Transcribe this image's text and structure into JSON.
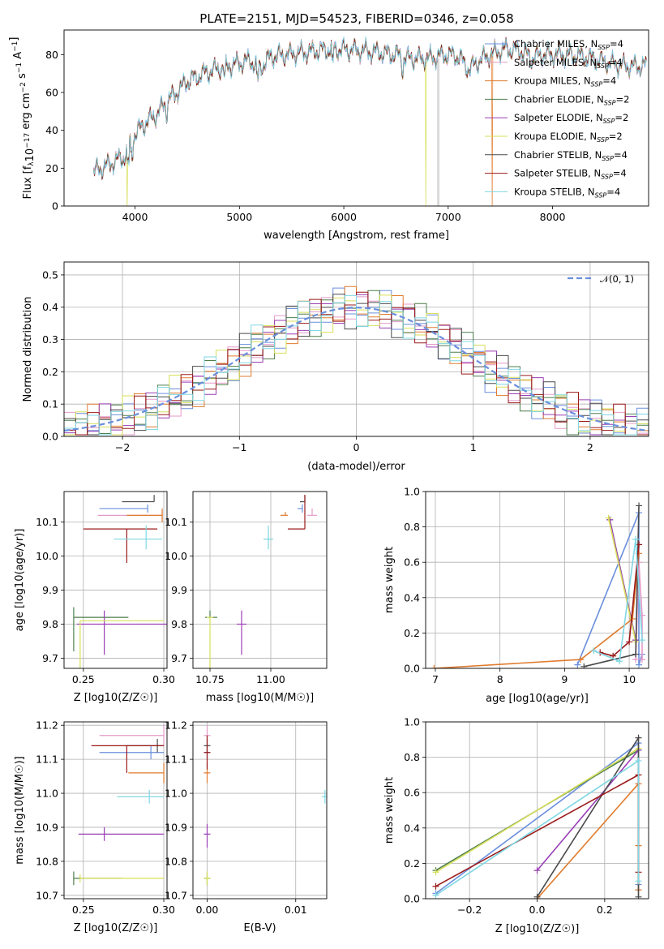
{
  "figure": {
    "title": "PLATE=2151, MJD=54523, FIBERID=0346, z=0.058"
  },
  "colors": {
    "series": [
      "#6a8fdc",
      "#e59ac9",
      "#e07b2d",
      "#4d7f4d",
      "#9a3fb5",
      "#d8df5a",
      "#4a4a4a",
      "#9b1a1a",
      "#7fd7e3"
    ],
    "normal_curve": "#6a8fdc",
    "grid": "#b0b0b0"
  },
  "chart_data": [
    {
      "type": "line",
      "panel": "spectrum",
      "title": "PLATE=2151, MJD=54523, FIBERID=0346, z=0.058",
      "xlabel": "wavelength [Angstrom, rest frame]",
      "ylabel": "Flux [f_λ10^-17 erg cm^-2 s^-1 A^-1]",
      "xlim": [
        3320,
        8920
      ],
      "ylim": [
        0,
        93
      ],
      "xticks": [
        4000,
        5000,
        6000,
        7000,
        8000
      ],
      "yticks": [
        0,
        20,
        40,
        60,
        80
      ],
      "grid": false,
      "legend": "upper right",
      "series": [
        {
          "name": "Chabrier MILES, N_SSP=4"
        },
        {
          "name": "Salpeter MILES, N_SSP=4"
        },
        {
          "name": "Kroupa MILES, N_SSP=4"
        },
        {
          "name": "Chabrier ELODIE, N_SSP=2"
        },
        {
          "name": "Salpeter ELODIE, N_SSP=2"
        },
        {
          "name": "Kroupa ELODIE, N_SSP=2"
        },
        {
          "name": "Chabrier STELIB, N_SSP=4"
        },
        {
          "name": "Salpeter STELIB, N_SSP=4"
        },
        {
          "name": "Kroupa STELIB, N_SSP=4"
        }
      ],
      "continuum": {
        "x": [
          3600,
          3750,
          3900,
          3950,
          4000,
          4100,
          4200,
          4300,
          4400,
          4500,
          4700,
          4900,
          5100,
          5200,
          5300,
          5600,
          5900,
          6200,
          6500,
          6600,
          6800,
          7000,
          7100,
          7200,
          7300,
          7400,
          7550,
          7700,
          7800,
          7900,
          8100,
          8300,
          8500,
          8700,
          8900
        ],
        "y": [
          18,
          22,
          26,
          34,
          38,
          44,
          48,
          55,
          60,
          66,
          71,
          74,
          77,
          73,
          79,
          81,
          83,
          82,
          80,
          78,
          78,
          80,
          79,
          72,
          77,
          80,
          83,
          82,
          78,
          80,
          80,
          79,
          76,
          74,
          74
        ]
      },
      "dropouts": {
        "x": [
          3925,
          6785,
          7420
        ],
        "series": [
          5,
          5,
          2
        ]
      }
    },
    {
      "type": "histogram",
      "panel": "residuals",
      "xlabel": "(data-model)/error",
      "ylabel": "Normed distribution",
      "xlim": [
        -2.5,
        2.5
      ],
      "ylim": [
        0,
        0.54
      ],
      "xticks": [
        -2,
        -1,
        0,
        1,
        2
      ],
      "yticks": [
        0.0,
        0.1,
        0.2,
        0.3,
        0.4,
        0.5
      ],
      "grid": true,
      "legend": "upper right",
      "legend_entries": [
        "𝒩(0, 1)"
      ],
      "bins": {
        "start": -2.5,
        "width": 0.1
      },
      "normal_curve": {
        "mean": 0,
        "sigma": 1
      }
    },
    {
      "type": "scatter",
      "panel": "age-vs-metallicity",
      "xlabel": "Z [log10(Z/Z☉)]",
      "ylabel": "age [log10(age/yr)]",
      "xlim": [
        0.238,
        0.302
      ],
      "ylim": [
        9.67,
        10.19
      ],
      "xticks": [
        0.25,
        0.3
      ],
      "yticks": [
        9.7,
        9.8,
        9.9,
        10.0,
        10.1
      ],
      "grid": true,
      "points": [
        {
          "x": 0.29,
          "y": 10.14,
          "xerr": [
            0.03,
            0.0
          ],
          "yerr": [
            0.0,
            0.0
          ]
        },
        {
          "x": 0.299,
          "y": 10.12,
          "xerr": [
            0.04,
            0.0
          ],
          "yerr": [
            0.0,
            0.0
          ]
        },
        {
          "x": 0.299,
          "y": 10.12,
          "xerr": [
            0.022,
            0.0
          ],
          "yerr": [
            0.02,
            0.02
          ]
        },
        {
          "x": 0.244,
          "y": 9.82,
          "xerr": [
            0.0,
            0.034
          ],
          "yerr": [
            0.1,
            0.03
          ]
        },
        {
          "x": 0.263,
          "y": 9.8,
          "xerr": [
            0.017,
            0.04
          ],
          "yerr": [
            0.09,
            0.04
          ]
        },
        {
          "x": 0.248,
          "y": 9.81,
          "xerr": [
            0.0,
            0.052
          ],
          "yerr": [
            0.15,
            0.0
          ]
        },
        {
          "x": 0.294,
          "y": 10.16,
          "xerr": [
            0.02,
            0.0
          ],
          "yerr": [
            0.0,
            0.02
          ]
        },
        {
          "x": 0.277,
          "y": 10.08,
          "xerr": [
            0.027,
            0.019
          ],
          "yerr": [
            0.1,
            0.0
          ]
        },
        {
          "x": 0.289,
          "y": 10.05,
          "xerr": [
            0.02,
            0.01
          ],
          "yerr": [
            0.03,
            0.04
          ]
        }
      ]
    },
    {
      "type": "scatter",
      "panel": "age-vs-mass",
      "xlabel": "mass [log10(M/M☉)]",
      "ylabel": "",
      "xlim": [
        10.68,
        11.23
      ],
      "ylim": [
        9.67,
        10.19
      ],
      "xticks": [
        10.75,
        11.0
      ],
      "yticks": [
        9.7,
        9.8,
        9.9,
        10.0,
        10.1
      ],
      "grid": true,
      "points": [
        {
          "x": 11.13,
          "y": 10.14,
          "xerr": [
            0.02,
            0.0
          ],
          "yerr": [
            0.0,
            0.0
          ]
        },
        {
          "x": 11.17,
          "y": 10.12,
          "xerr": [
            0.02,
            0.02
          ],
          "yerr": [
            0.0,
            0.02
          ]
        },
        {
          "x": 11.06,
          "y": 10.12,
          "xerr": [
            0.02,
            0.01
          ],
          "yerr": [
            0.0,
            0.01
          ]
        },
        {
          "x": 10.75,
          "y": 9.82,
          "xerr": [
            0.02,
            0.03
          ],
          "yerr": [
            0.0,
            0.02
          ]
        },
        {
          "x": 10.88,
          "y": 9.8,
          "xerr": [
            0.02,
            0.02
          ],
          "yerr": [
            0.09,
            0.04
          ]
        },
        {
          "x": 10.75,
          "y": 9.82,
          "xerr": [
            0.0,
            0.0
          ],
          "yerr": [
            0.15,
            0.0
          ]
        },
        {
          "x": 11.14,
          "y": 10.16,
          "xerr": [
            0.02,
            0.0
          ],
          "yerr": [
            0.0,
            0.02
          ]
        },
        {
          "x": 11.14,
          "y": 10.08,
          "xerr": [
            0.07,
            0.0
          ],
          "yerr": [
            0.0,
            0.1
          ]
        },
        {
          "x": 10.99,
          "y": 10.05,
          "xerr": [
            0.02,
            0.02
          ],
          "yerr": [
            0.03,
            0.04
          ]
        }
      ]
    },
    {
      "type": "line",
      "panel": "mass-weight-vs-age",
      "xlabel": "age [log10(age/yr)]",
      "ylabel": "mass weight",
      "xlim": [
        6.85,
        10.3
      ],
      "ylim": [
        0,
        1.0
      ],
      "xticks": [
        7,
        8,
        9,
        10
      ],
      "yticks": [
        0.0,
        0.2,
        0.4,
        0.6,
        0.8,
        1.0
      ],
      "grid": true,
      "series": [
        {
          "points": [
            [
              9.2,
              0.02
            ],
            [
              10.15,
              0.88
            ],
            [
              10.15,
              0.02
            ],
            [
              10.2,
              0.08
            ]
          ]
        },
        {
          "points": [
            [
              10.1,
              0.05
            ],
            [
              10.15,
              0.6
            ],
            [
              10.2,
              0.3
            ],
            [
              10.2,
              0.05
            ]
          ]
        },
        {
          "points": [
            [
              6.98,
              0.0
            ],
            [
              9.25,
              0.05
            ],
            [
              10.05,
              0.28
            ],
            [
              10.15,
              0.65
            ]
          ]
        },
        {
          "points": [
            [
              9.7,
              0.84
            ],
            [
              10.1,
              0.16
            ]
          ]
        },
        {
          "points": [
            [
              9.7,
              0.84
            ],
            [
              10.1,
              0.16
            ]
          ]
        },
        {
          "points": [
            [
              9.68,
              0.85
            ],
            [
              10.1,
              0.15
            ]
          ]
        },
        {
          "points": [
            [
              9.3,
              0.01
            ],
            [
              10.1,
              0.08
            ],
            [
              10.15,
              0.92
            ]
          ]
        },
        {
          "points": [
            [
              9.55,
              0.09
            ],
            [
              9.75,
              0.07
            ],
            [
              10.0,
              0.15
            ],
            [
              10.15,
              0.7
            ]
          ]
        },
        {
          "points": [
            [
              9.45,
              0.1
            ],
            [
              9.85,
              0.04
            ],
            [
              10.1,
              0.73
            ],
            [
              10.2,
              0.16
            ]
          ]
        }
      ]
    },
    {
      "type": "scatter",
      "panel": "mass-vs-metallicity",
      "xlabel": "Z [log10(Z/Z☉)]",
      "ylabel": "mass [log10(M/M☉)]",
      "xlim": [
        0.238,
        0.302
      ],
      "ylim": [
        10.69,
        11.21
      ],
      "xticks": [
        0.25,
        0.3
      ],
      "yticks": [
        10.7,
        10.8,
        10.9,
        11.0,
        11.1,
        11.2
      ],
      "grid": true,
      "points": [
        {
          "x": 0.292,
          "y": 11.12,
          "xerr": [
            0.032,
            0.008
          ],
          "yerr": [
            0.02,
            0.02
          ]
        },
        {
          "x": 0.3,
          "y": 11.17,
          "xerr": [
            0.04,
            0.0
          ],
          "yerr": [
            0.03,
            0.03
          ]
        },
        {
          "x": 0.3,
          "y": 11.06,
          "xerr": [
            0.022,
            0.0
          ],
          "yerr": [
            0.03,
            0.03
          ]
        },
        {
          "x": 0.244,
          "y": 10.75,
          "xerr": [
            0.0,
            0.03
          ],
          "yerr": [
            0.02,
            0.02
          ]
        },
        {
          "x": 0.263,
          "y": 10.88,
          "xerr": [
            0.016,
            0.037
          ],
          "yerr": [
            0.02,
            0.02
          ]
        },
        {
          "x": 0.248,
          "y": 10.75,
          "xerr": [
            0.0,
            0.052
          ],
          "yerr": [
            0.0,
            0.0
          ]
        },
        {
          "x": 0.296,
          "y": 11.14,
          "xerr": [
            0.02,
            0.004
          ],
          "yerr": [
            0.02,
            0.02
          ]
        },
        {
          "x": 0.277,
          "y": 11.14,
          "xerr": [
            0.022,
            0.023
          ],
          "yerr": [
            0.08,
            0.0
          ]
        },
        {
          "x": 0.291,
          "y": 10.99,
          "xerr": [
            0.02,
            0.009
          ],
          "yerr": [
            0.02,
            0.02
          ]
        }
      ]
    },
    {
      "type": "scatter",
      "panel": "mass-vs-extinction",
      "xlabel": "E(B-V)",
      "ylabel": "",
      "xlim": [
        -0.0016,
        0.0135
      ],
      "ylim": [
        10.69,
        11.21
      ],
      "xticks": [
        0.0,
        0.01
      ],
      "yticks": [
        10.7,
        10.8,
        10.9,
        11.0,
        11.1,
        11.2
      ],
      "grid": true,
      "points": [
        {
          "x": 0.0,
          "y": 11.12,
          "yerr": [
            0.02,
            0.02
          ]
        },
        {
          "x": 0.0,
          "y": 11.17,
          "yerr": [
            0.03,
            0.03
          ]
        },
        {
          "x": 0.0,
          "y": 11.06,
          "yerr": [
            0.03,
            0.03
          ]
        },
        {
          "x": 0.0,
          "y": 10.75,
          "yerr": [
            0.02,
            0.02
          ]
        },
        {
          "x": 0.0,
          "y": 10.88,
          "yerr": [
            0.04,
            0.03
          ]
        },
        {
          "x": 0.0,
          "y": 10.75,
          "yerr": [
            0.02,
            0.02
          ]
        },
        {
          "x": 0.0,
          "y": 11.14,
          "yerr": [
            0.02,
            0.02
          ]
        },
        {
          "x": 0.0,
          "y": 11.12,
          "yerr": [
            0.05,
            0.05
          ]
        },
        {
          "x": 0.0133,
          "y": 10.99,
          "yerr": [
            0.02,
            0.02
          ]
        }
      ]
    },
    {
      "type": "line",
      "panel": "mass-weight-vs-metallicity",
      "xlabel": "Z [log10(Z/Z☉)]",
      "ylabel": "mass weight",
      "xlim": [
        -0.33,
        0.33
      ],
      "ylim": [
        0,
        1.0
      ],
      "xticks": [
        -0.2,
        0.0,
        0.2
      ],
      "yticks": [
        0.0,
        0.2,
        0.4,
        0.6,
        0.8,
        1.0
      ],
      "grid": true,
      "series": [
        {
          "points": [
            [
              -0.3,
              0.03
            ],
            [
              0.3,
              0.88
            ],
            [
              0.3,
              0.08
            ]
          ]
        },
        {
          "points": [
            [
              0.3,
              0.05
            ],
            [
              0.3,
              0.65
            ]
          ]
        },
        {
          "points": [
            [
              0.0,
              0.0
            ],
            [
              0.3,
              0.65
            ],
            [
              0.3,
              0.3
            ],
            [
              0.3,
              0.05
            ]
          ]
        },
        {
          "points": [
            [
              -0.3,
              0.16
            ],
            [
              0.3,
              0.84
            ]
          ]
        },
        {
          "points": [
            [
              0.0,
              0.16
            ],
            [
              0.3,
              0.84
            ]
          ]
        },
        {
          "points": [
            [
              -0.3,
              0.15
            ],
            [
              0.3,
              0.85
            ]
          ]
        },
        {
          "points": [
            [
              0.0,
              0.01
            ],
            [
              0.3,
              0.91
            ],
            [
              0.3,
              0.01
            ]
          ]
        },
        {
          "points": [
            [
              -0.3,
              0.07
            ],
            [
              0.3,
              0.7
            ],
            [
              0.3,
              0.15
            ]
          ]
        },
        {
          "points": [
            [
              -0.3,
              0.02
            ],
            [
              0.3,
              0.78
            ],
            [
              0.3,
              0.1
            ]
          ]
        }
      ]
    }
  ]
}
